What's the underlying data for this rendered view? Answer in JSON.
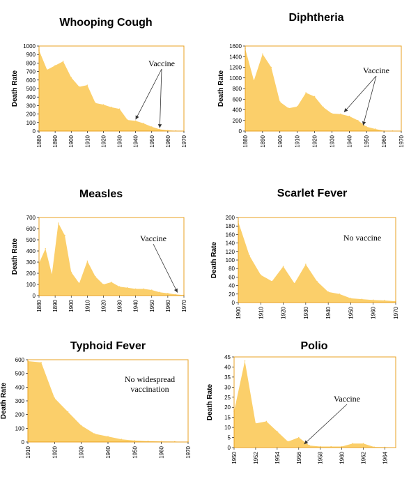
{
  "chart_data": [
    {
      "type": "area",
      "title": "Whooping Cough",
      "ylabel": "Death Rate",
      "x": [
        1880,
        1885,
        1890,
        1895,
        1900,
        1905,
        1910,
        1915,
        1920,
        1925,
        1930,
        1935,
        1940,
        1945,
        1950,
        1955,
        1960,
        1965,
        1970
      ],
      "values": [
        950,
        720,
        770,
        820,
        630,
        520,
        540,
        330,
        310,
        280,
        260,
        130,
        120,
        90,
        50,
        20,
        8,
        3,
        0
      ],
      "xticks": [
        1880,
        1890,
        1900,
        1910,
        1920,
        1930,
        1940,
        1950,
        1960,
        1970
      ],
      "yticks": [
        0,
        100,
        200,
        300,
        400,
        500,
        600,
        700,
        800,
        900,
        1000
      ],
      "xlim": [
        1880,
        1970
      ],
      "ylim": [
        0,
        1000
      ],
      "annotation": {
        "text": "Vaccine",
        "targets": [
          [
            1940,
            120
          ],
          [
            1955,
            20
          ]
        ]
      }
    },
    {
      "type": "area",
      "title": "Diphtheria",
      "ylabel": "Death Rate",
      "x": [
        1880,
        1885,
        1890,
        1895,
        1900,
        1905,
        1910,
        1915,
        1920,
        1925,
        1930,
        1935,
        1940,
        1945,
        1950,
        1955,
        1960,
        1965,
        1970
      ],
      "values": [
        1550,
        950,
        1450,
        1200,
        550,
        430,
        460,
        720,
        650,
        450,
        330,
        320,
        280,
        200,
        80,
        40,
        5,
        2,
        0
      ],
      "xticks": [
        1880,
        1890,
        1900,
        1910,
        1920,
        1930,
        1940,
        1950,
        1960,
        1970
      ],
      "yticks": [
        0,
        200,
        400,
        600,
        800,
        1000,
        1200,
        1400,
        1600
      ],
      "xlim": [
        1880,
        1970
      ],
      "ylim": [
        0,
        1600
      ],
      "annotation": {
        "text": "Vaccine",
        "targets": [
          [
            1937,
            330
          ],
          [
            1948,
            80
          ]
        ]
      }
    },
    {
      "type": "area",
      "title": "Measles",
      "ylabel": "Death Rate",
      "x": [
        1880,
        1884,
        1888,
        1892,
        1896,
        1900,
        1905,
        1910,
        1915,
        1920,
        1925,
        1930,
        1935,
        1940,
        1945,
        1950,
        1955,
        1960,
        1965,
        1970
      ],
      "values": [
        290,
        420,
        190,
        650,
        540,
        210,
        110,
        310,
        170,
        100,
        120,
        80,
        70,
        60,
        60,
        50,
        30,
        20,
        10,
        5
      ],
      "xticks": [
        1880,
        1890,
        1900,
        1910,
        1920,
        1930,
        1940,
        1950,
        1960,
        1970
      ],
      "yticks": [
        0,
        100,
        200,
        300,
        400,
        500,
        600,
        700
      ],
      "xlim": [
        1880,
        1970
      ],
      "ylim": [
        0,
        700
      ],
      "annotation": {
        "text": "Vaccine",
        "targets": [
          [
            1966,
            15
          ]
        ]
      }
    },
    {
      "type": "area",
      "title": "Scarlet Fever",
      "ylabel": "Death Rate",
      "x": [
        1900,
        1905,
        1910,
        1915,
        1920,
        1925,
        1930,
        1935,
        1940,
        1945,
        1950,
        1955,
        1960,
        1965,
        1970
      ],
      "values": [
        190,
        110,
        65,
        50,
        85,
        45,
        90,
        50,
        25,
        20,
        10,
        8,
        6,
        5,
        3
      ],
      "xticks": [
        1900,
        1910,
        1920,
        1930,
        1940,
        1950,
        1960,
        1970
      ],
      "yticks": [
        0,
        20,
        40,
        60,
        80,
        100,
        120,
        140,
        160,
        180,
        200
      ],
      "xlim": [
        1900,
        1970
      ],
      "ylim": [
        0,
        200
      ],
      "annotation": {
        "text": "No vaccine",
        "targets": []
      }
    },
    {
      "type": "area",
      "title": "Typhoid Fever",
      "ylabel": "Death Rate",
      "x": [
        1910,
        1915,
        1920,
        1925,
        1930,
        1935,
        1940,
        1945,
        1950,
        1955,
        1960,
        1965,
        1970
      ],
      "values": [
        590,
        580,
        320,
        220,
        120,
        60,
        40,
        20,
        10,
        6,
        4,
        3,
        2
      ],
      "xticks": [
        1910,
        1920,
        1930,
        1940,
        1950,
        1960,
        1970
      ],
      "yticks": [
        0,
        100,
        200,
        300,
        400,
        500,
        600
      ],
      "xlim": [
        1910,
        1970
      ],
      "ylim": [
        0,
        600
      ],
      "annotation": {
        "text": "No widespread\nvaccination",
        "targets": []
      }
    },
    {
      "type": "area",
      "title": "Polio",
      "ylabel": "Death Rate",
      "x": [
        1950,
        1951,
        1952,
        1953,
        1954,
        1955,
        1956,
        1957,
        1958,
        1959,
        1960,
        1961,
        1962,
        1963,
        1964,
        1965
      ],
      "values": [
        18,
        43,
        12,
        13,
        8,
        3,
        5,
        1,
        0.5,
        0.5,
        0.5,
        2,
        2,
        0.3,
        0.2,
        0.1
      ],
      "xticks": [
        1950,
        1952,
        1954,
        1956,
        1958,
        1960,
        1962,
        1964
      ],
      "yticks": [
        0,
        5,
        10,
        15,
        20,
        25,
        30,
        35,
        40,
        45
      ],
      "xlim": [
        1950,
        1965
      ],
      "ylim": [
        0,
        45
      ],
      "annotation": {
        "text": "Vaccine",
        "targets": [
          [
            1956.5,
            1
          ]
        ]
      }
    }
  ],
  "colors": {
    "fill": "#FBCF6A",
    "frame": "#E8A020",
    "text": "#000000"
  }
}
